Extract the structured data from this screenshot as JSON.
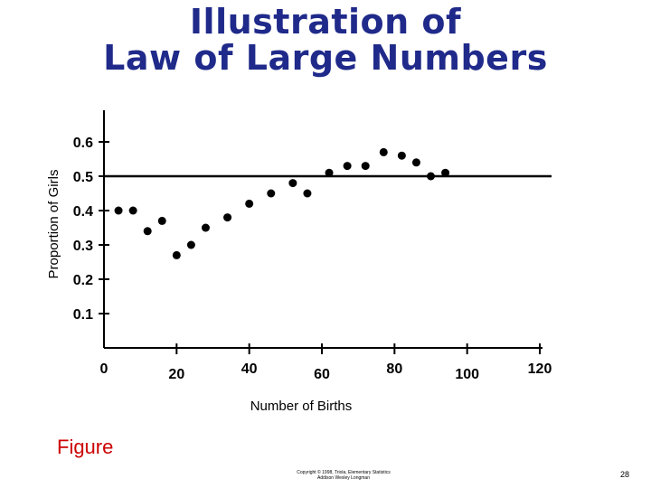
{
  "slide": {
    "title_line1": "Illustration of",
    "title_line2": "Law of Large Numbers",
    "figure_label": "Figure",
    "copyright_line1": "Copyright © 1998, Triola, Elementary Statistics",
    "copyright_line2": "Addison Wesley Longman",
    "page_number": "28"
  },
  "colors": {
    "title": "#1f2a8a",
    "figure_label": "#cc0000",
    "marks": "#000000"
  },
  "chart_data": {
    "type": "scatter",
    "title": "",
    "xlabel": "Number of Births",
    "ylabel": "Proportion of Girls",
    "xlim": [
      0,
      120
    ],
    "ylim": [
      0,
      0.6
    ],
    "x_ticks": [
      "0",
      "20",
      "40",
      "60",
      "80",
      "100",
      "120"
    ],
    "y_ticks": [
      "0.1",
      "0.2",
      "0.3",
      "0.4",
      "0.5",
      "0.6"
    ],
    "reference_line": 0.5,
    "grid": false,
    "points": [
      {
        "x": 4,
        "y": 0.4
      },
      {
        "x": 8,
        "y": 0.4
      },
      {
        "x": 12,
        "y": 0.34
      },
      {
        "x": 16,
        "y": 0.37
      },
      {
        "x": 20,
        "y": 0.27
      },
      {
        "x": 24,
        "y": 0.3
      },
      {
        "x": 28,
        "y": 0.35
      },
      {
        "x": 34,
        "y": 0.38
      },
      {
        "x": 40,
        "y": 0.42
      },
      {
        "x": 46,
        "y": 0.45
      },
      {
        "x": 52,
        "y": 0.48
      },
      {
        "x": 56,
        "y": 0.45
      },
      {
        "x": 62,
        "y": 0.51
      },
      {
        "x": 67,
        "y": 0.53
      },
      {
        "x": 72,
        "y": 0.53
      },
      {
        "x": 77,
        "y": 0.57
      },
      {
        "x": 82,
        "y": 0.56
      },
      {
        "x": 86,
        "y": 0.54
      },
      {
        "x": 90,
        "y": 0.5
      },
      {
        "x": 94,
        "y": 0.51
      }
    ]
  }
}
